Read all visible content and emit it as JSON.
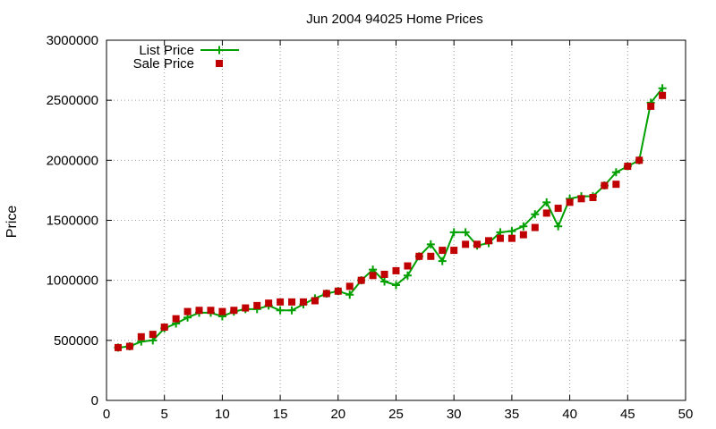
{
  "chart_data": {
    "type": "line",
    "title": "Jun 2004 94025 Home Prices",
    "xlabel": "",
    "ylabel": "Price",
    "xlim": [
      0,
      50
    ],
    "ylim": [
      0,
      3000000
    ],
    "x_ticks": [
      0,
      5,
      10,
      15,
      20,
      25,
      30,
      35,
      40,
      45,
      50
    ],
    "y_ticks": [
      0,
      500000,
      1000000,
      1500000,
      2000000,
      2500000,
      3000000
    ],
    "x_tick_labels": [
      "0",
      "5",
      "10",
      "15",
      "20",
      "25",
      "30",
      "35",
      "40",
      "45",
      "50"
    ],
    "y_tick_labels": [
      "0",
      "500000",
      "1000000",
      "1500000",
      "2000000",
      "2500000",
      "3000000"
    ],
    "grid": true,
    "legend_position": "top-left",
    "x": [
      1,
      2,
      3,
      4,
      5,
      6,
      7,
      8,
      9,
      10,
      11,
      12,
      13,
      14,
      15,
      16,
      17,
      18,
      19,
      20,
      21,
      22,
      23,
      24,
      25,
      26,
      27,
      28,
      29,
      30,
      31,
      32,
      33,
      34,
      35,
      36,
      37,
      38,
      39,
      40,
      41,
      42,
      43,
      44,
      45,
      46,
      47,
      48
    ],
    "series": [
      {
        "name": "List Price",
        "style": "line-with-plus-markers",
        "color": "#00a000",
        "values": [
          440000,
          450000,
          490000,
          500000,
          600000,
          640000,
          690000,
          730000,
          730000,
          700000,
          740000,
          760000,
          760000,
          790000,
          750000,
          750000,
          800000,
          850000,
          890000,
          910000,
          880000,
          1000000,
          1090000,
          990000,
          960000,
          1040000,
          1200000,
          1300000,
          1160000,
          1400000,
          1400000,
          1290000,
          1310000,
          1400000,
          1410000,
          1450000,
          1550000,
          1650000,
          1450000,
          1680000,
          1700000,
          1700000,
          1790000,
          1900000,
          1950000,
          2000000,
          2480000,
          2600000
        ]
      },
      {
        "name": "Sale Price",
        "style": "square-markers",
        "color": "#c00000",
        "values": [
          440000,
          450000,
          530000,
          550000,
          610000,
          680000,
          740000,
          750000,
          750000,
          740000,
          750000,
          770000,
          790000,
          810000,
          820000,
          820000,
          820000,
          830000,
          890000,
          910000,
          950000,
          1000000,
          1040000,
          1050000,
          1080000,
          1120000,
          1200000,
          1200000,
          1250000,
          1250000,
          1300000,
          1300000,
          1330000,
          1350000,
          1350000,
          1380000,
          1440000,
          1560000,
          1600000,
          1650000,
          1680000,
          1690000,
          1790000,
          1800000,
          1950000,
          2000000,
          2450000,
          2540000
        ]
      }
    ]
  }
}
